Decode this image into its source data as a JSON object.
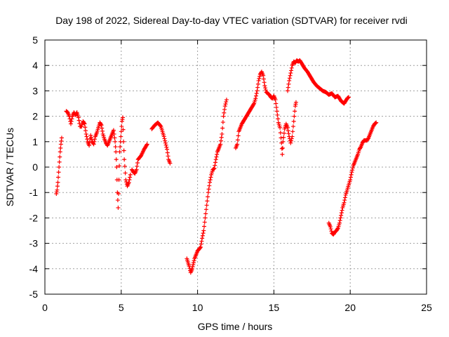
{
  "chart_data": {
    "type": "scatter",
    "title": "Day 198 of 2022, Sidereal Day-to-day VTEC variation (SDTVAR) for receiver rvdi",
    "xlabel": "GPS time / hours",
    "ylabel": "SDTVAR / TECUs",
    "xlim": [
      0,
      25
    ],
    "ylim": [
      -5,
      5
    ],
    "xticks": [
      0,
      5,
      10,
      15,
      20,
      25
    ],
    "yticks": [
      -5,
      -4,
      -3,
      -2,
      -1,
      0,
      1,
      2,
      3,
      4,
      5
    ],
    "grid": true,
    "legend": "none",
    "marker": "+",
    "series": [
      {
        "color": "#ff0000",
        "segments": [
          [
            [
              0.75,
              -1.05
            ],
            [
              0.8,
              -0.9
            ],
            [
              0.85,
              -0.6
            ],
            [
              0.9,
              -0.2
            ],
            [
              0.95,
              0.2
            ],
            [
              1.0,
              0.6
            ],
            [
              1.05,
              0.9
            ],
            [
              1.1,
              1.15
            ]
          ],
          [
            [
              1.4,
              2.2
            ],
            [
              1.5,
              2.15
            ],
            [
              1.6,
              2.0
            ],
            [
              1.7,
              1.7
            ],
            [
              1.8,
              2.0
            ],
            [
              1.9,
              2.15
            ],
            [
              2.0,
              2.05
            ],
            [
              2.1,
              2.15
            ],
            [
              2.2,
              1.95
            ],
            [
              2.3,
              1.6
            ],
            [
              2.4,
              1.6
            ],
            [
              2.5,
              1.8
            ],
            [
              2.6,
              1.7
            ],
            [
              2.7,
              1.3
            ],
            [
              2.8,
              1.0
            ],
            [
              2.9,
              0.85
            ],
            [
              3.0,
              1.25
            ],
            [
              3.1,
              1.0
            ],
            [
              3.2,
              0.9
            ],
            [
              3.3,
              1.2
            ],
            [
              3.4,
              1.35
            ],
            [
              3.5,
              1.55
            ],
            [
              3.6,
              1.75
            ],
            [
              3.7,
              1.65
            ],
            [
              3.8,
              1.3
            ],
            [
              3.9,
              1.1
            ],
            [
              4.0,
              0.95
            ],
            [
              4.1,
              0.85
            ],
            [
              4.2,
              1.0
            ],
            [
              4.3,
              1.15
            ],
            [
              4.4,
              1.3
            ],
            [
              4.5,
              1.45
            ],
            [
              4.6,
              1.0
            ],
            [
              4.65,
              0.6
            ],
            [
              4.7,
              0.0
            ],
            [
              4.75,
              -1.0
            ],
            [
              4.8,
              -1.6
            ],
            [
              4.85,
              -0.5
            ],
            [
              4.9,
              0.6
            ],
            [
              4.95,
              1.0
            ],
            [
              5.0,
              1.4
            ],
            [
              5.05,
              1.8
            ],
            [
              5.1,
              1.95
            ],
            [
              5.15,
              1.0
            ],
            [
              5.2,
              0.3
            ],
            [
              5.3,
              -0.5
            ],
            [
              5.4,
              -0.75
            ],
            [
              5.5,
              -0.6
            ],
            [
              5.6,
              -0.3
            ]
          ],
          [
            [
              5.7,
              -0.1
            ],
            [
              5.8,
              -0.2
            ],
            [
              5.9,
              -0.25
            ],
            [
              6.0,
              -0.1
            ],
            [
              6.1,
              0.3
            ],
            [
              6.3,
              0.45
            ],
            [
              6.5,
              0.7
            ],
            [
              6.7,
              0.9
            ]
          ],
          [
            [
              7.0,
              1.5
            ],
            [
              7.2,
              1.65
            ],
            [
              7.4,
              1.75
            ],
            [
              7.6,
              1.6
            ],
            [
              7.8,
              1.2
            ],
            [
              8.0,
              0.7
            ],
            [
              8.1,
              0.3
            ],
            [
              8.2,
              0.15
            ]
          ],
          [
            [
              9.3,
              -3.6
            ],
            [
              9.45,
              -3.9
            ],
            [
              9.55,
              -4.15
            ],
            [
              9.65,
              -4.0
            ],
            [
              9.8,
              -3.6
            ],
            [
              10.0,
              -3.3
            ],
            [
              10.2,
              -3.15
            ],
            [
              10.3,
              -2.8
            ],
            [
              10.4,
              -2.5
            ],
            [
              10.5,
              -2.0
            ],
            [
              10.6,
              -1.5
            ],
            [
              10.7,
              -1.0
            ],
            [
              10.8,
              -0.6
            ],
            [
              10.9,
              -0.3
            ],
            [
              11.0,
              -0.1
            ],
            [
              11.1,
              -0.05
            ],
            [
              11.2,
              0.3
            ],
            [
              11.3,
              0.6
            ],
            [
              11.4,
              0.75
            ],
            [
              11.5,
              0.9
            ],
            [
              11.6,
              1.3
            ],
            [
              11.7,
              2.0
            ],
            [
              11.8,
              2.4
            ],
            [
              11.9,
              2.65
            ]
          ],
          [
            [
              12.5,
              0.75
            ],
            [
              12.6,
              0.9
            ],
            [
              12.7,
              1.4
            ],
            [
              12.9,
              1.7
            ],
            [
              13.1,
              1.9
            ],
            [
              13.3,
              2.1
            ],
            [
              13.5,
              2.3
            ],
            [
              13.7,
              2.5
            ],
            [
              13.8,
              2.7
            ],
            [
              13.9,
              3.0
            ],
            [
              14.0,
              3.4
            ],
            [
              14.1,
              3.65
            ],
            [
              14.2,
              3.75
            ],
            [
              14.3,
              3.6
            ],
            [
              14.4,
              3.2
            ],
            [
              14.5,
              2.95
            ],
            [
              14.6,
              2.9
            ],
            [
              14.7,
              2.85
            ],
            [
              14.8,
              2.75
            ],
            [
              14.9,
              2.7
            ],
            [
              15.0,
              2.8
            ],
            [
              15.1,
              2.65
            ],
            [
              15.2,
              2.2
            ],
            [
              15.3,
              1.75
            ],
            [
              15.4,
              1.55
            ],
            [
              15.5,
              0.95
            ],
            [
              15.55,
              0.5
            ],
            [
              15.6,
              1.0
            ],
            [
              15.7,
              1.5
            ],
            [
              15.8,
              1.7
            ],
            [
              15.9,
              1.55
            ],
            [
              16.0,
              1.2
            ],
            [
              16.1,
              0.95
            ],
            [
              16.2,
              1.2
            ],
            [
              16.3,
              1.8
            ],
            [
              16.4,
              2.4
            ],
            [
              16.45,
              2.55
            ]
          ],
          [
            [
              15.9,
              3.0
            ],
            [
              16.0,
              3.4
            ],
            [
              16.1,
              3.7
            ],
            [
              16.2,
              4.0
            ],
            [
              16.3,
              4.15
            ],
            [
              16.4,
              4.1
            ],
            [
              16.5,
              4.2
            ],
            [
              16.6,
              4.15
            ],
            [
              16.7,
              4.2
            ],
            [
              16.8,
              4.1
            ],
            [
              16.9,
              4.0
            ],
            [
              17.0,
              3.9
            ],
            [
              17.2,
              3.75
            ],
            [
              17.4,
              3.55
            ],
            [
              17.6,
              3.35
            ],
            [
              17.8,
              3.2
            ],
            [
              18.0,
              3.1
            ],
            [
              18.2,
              3.0
            ],
            [
              18.4,
              2.95
            ],
            [
              18.6,
              2.85
            ],
            [
              18.8,
              2.9
            ],
            [
              19.0,
              2.75
            ],
            [
              19.2,
              2.8
            ],
            [
              19.4,
              2.6
            ],
            [
              19.5,
              2.55
            ],
            [
              19.6,
              2.5
            ],
            [
              19.7,
              2.6
            ],
            [
              19.8,
              2.7
            ],
            [
              19.9,
              2.75
            ]
          ],
          [
            [
              18.6,
              -2.2
            ],
            [
              18.7,
              -2.35
            ],
            [
              18.8,
              -2.6
            ],
            [
              18.9,
              -2.65
            ],
            [
              19.0,
              -2.55
            ],
            [
              19.1,
              -2.5
            ],
            [
              19.2,
              -2.4
            ],
            [
              19.3,
              -2.2
            ],
            [
              19.4,
              -1.9
            ],
            [
              19.5,
              -1.6
            ],
            [
              19.6,
              -1.4
            ],
            [
              19.7,
              -1.1
            ],
            [
              19.8,
              -0.9
            ],
            [
              19.9,
              -0.7
            ],
            [
              20.0,
              -0.5
            ],
            [
              20.1,
              -0.2
            ],
            [
              20.2,
              0.05
            ],
            [
              20.3,
              0.2
            ],
            [
              20.4,
              0.35
            ],
            [
              20.5,
              0.5
            ],
            [
              20.6,
              0.7
            ],
            [
              20.7,
              0.8
            ],
            [
              20.8,
              0.95
            ],
            [
              20.9,
              1.05
            ],
            [
              21.0,
              1.05
            ],
            [
              21.1,
              1.05
            ],
            [
              21.2,
              1.15
            ],
            [
              21.3,
              1.3
            ],
            [
              21.4,
              1.45
            ],
            [
              21.5,
              1.6
            ],
            [
              21.6,
              1.7
            ],
            [
              21.7,
              1.75
            ]
          ]
        ]
      }
    ]
  }
}
